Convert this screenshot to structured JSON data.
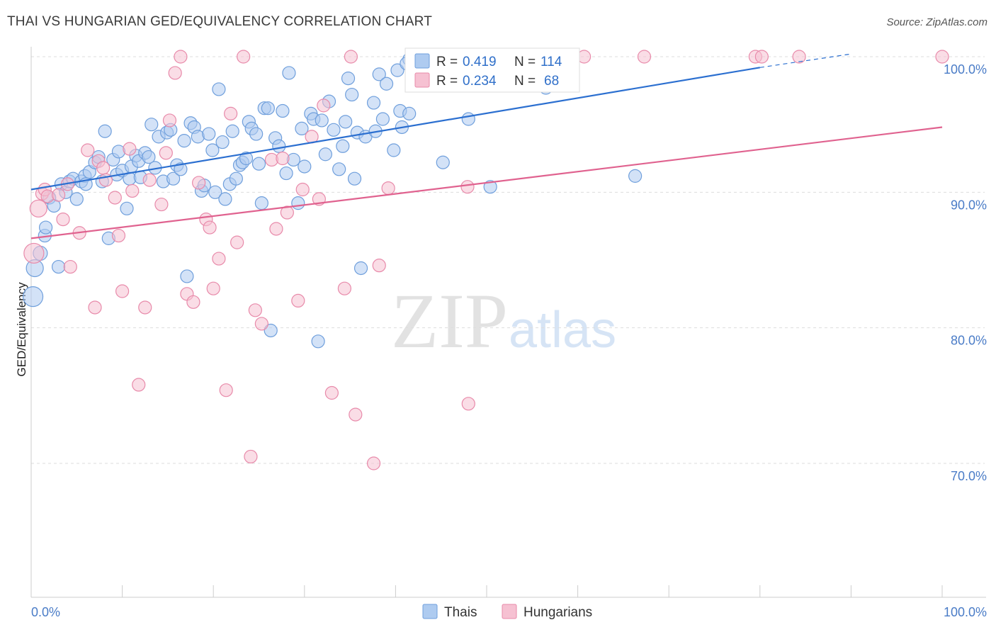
{
  "title": "THAI VS HUNGARIAN GED/EQUIVALENCY CORRELATION CHART",
  "source": "Source: ZipAtlas.com",
  "watermark": {
    "part1": "ZIP",
    "part2": "atlas"
  },
  "colors": {
    "thai_fill": "#aecbf0",
    "thai_stroke": "#6f9fdc",
    "thai_line": "#2b6fd0",
    "hungarian_fill": "#f6c1d2",
    "hungarian_stroke": "#e88aaa",
    "hungarian_line": "#e0628f",
    "grid": "#dddddd",
    "tick_label": "#4a7cc7"
  },
  "legend": {
    "r_label": "R =",
    "n_label": "N =",
    "thai": {
      "r": "0.419",
      "n": "114"
    },
    "hungarian": {
      "r": "0.234",
      "n": "68"
    }
  },
  "bottom_legend": {
    "thai": "Thais",
    "hungarian": "Hungarians"
  },
  "chart_data": {
    "type": "scatter",
    "ylabel": "GED/Equivalency",
    "xlabel": "",
    "xlim": [
      0,
      100
    ],
    "ylim": [
      60,
      100
    ],
    "x_tick_labels": [
      "0.0%",
      "100.0%"
    ],
    "y_ticks": [
      {
        "value": 70,
        "label": "70.0%"
      },
      {
        "value": 80,
        "label": "80.0%"
      },
      {
        "value": 90,
        "label": "90.0%"
      },
      {
        "value": 100,
        "label": "100.0%"
      }
    ],
    "series": [
      {
        "name": "Thais",
        "trend": {
          "x0": 0,
          "y0": 90.2,
          "x1": 80,
          "y1": 99.2,
          "dash_x1": 90,
          "dash_y1": 100.2
        },
        "points": [
          [
            0.2,
            82.3,
            14
          ],
          [
            0.4,
            84.4,
            12
          ],
          [
            1.0,
            85.5,
            10
          ],
          [
            1.5,
            86.8,
            9
          ],
          [
            1.6,
            87.4,
            9
          ],
          [
            2.0,
            89.6,
            9
          ],
          [
            2.5,
            89.0,
            9
          ],
          [
            3.0,
            84.5,
            9
          ],
          [
            3.3,
            90.6,
            9
          ],
          [
            3.8,
            90.0,
            9
          ],
          [
            4.2,
            90.8,
            9
          ],
          [
            4.6,
            91.0,
            9
          ],
          [
            5.0,
            89.5,
            9
          ],
          [
            5.5,
            90.8,
            9
          ],
          [
            5.9,
            91.2,
            9
          ],
          [
            6.0,
            90.6,
            9
          ],
          [
            6.4,
            91.5,
            9
          ],
          [
            7.0,
            92.2,
            9
          ],
          [
            7.4,
            92.6,
            9
          ],
          [
            7.8,
            90.8,
            9
          ],
          [
            8.1,
            94.5,
            9
          ],
          [
            8.5,
            86.6,
            9
          ],
          [
            9.0,
            92.4,
            9
          ],
          [
            9.4,
            91.3,
            9
          ],
          [
            9.6,
            93.0,
            9
          ],
          [
            10.0,
            91.6,
            9
          ],
          [
            10.5,
            88.8,
            9
          ],
          [
            10.8,
            91.0,
            9
          ],
          [
            11.0,
            91.9,
            9
          ],
          [
            11.5,
            92.7,
            9
          ],
          [
            11.8,
            92.3,
            9
          ],
          [
            12.0,
            91.1,
            9
          ],
          [
            12.5,
            92.9,
            9
          ],
          [
            12.9,
            92.6,
            9
          ],
          [
            13.2,
            95.0,
            9
          ],
          [
            13.6,
            91.8,
            9
          ],
          [
            14.0,
            94.1,
            9
          ],
          [
            14.5,
            90.8,
            9
          ],
          [
            14.9,
            94.4,
            9
          ],
          [
            15.3,
            94.6,
            9
          ],
          [
            15.6,
            91.0,
            9
          ],
          [
            16.0,
            92.0,
            9
          ],
          [
            16.4,
            91.7,
            9
          ],
          [
            16.8,
            93.8,
            9
          ],
          [
            17.1,
            83.8,
            9
          ],
          [
            17.5,
            95.1,
            9
          ],
          [
            17.9,
            94.8,
            9
          ],
          [
            18.3,
            94.1,
            9
          ],
          [
            18.7,
            90.1,
            9
          ],
          [
            19.0,
            90.5,
            9
          ],
          [
            19.5,
            94.3,
            9
          ],
          [
            19.9,
            93.1,
            9
          ],
          [
            20.2,
            90.0,
            9
          ],
          [
            20.6,
            97.6,
            9
          ],
          [
            21.0,
            93.7,
            9
          ],
          [
            21.3,
            89.5,
            9
          ],
          [
            21.8,
            90.6,
            9
          ],
          [
            22.1,
            94.5,
            9
          ],
          [
            22.5,
            91.0,
            9
          ],
          [
            22.9,
            92.0,
            9
          ],
          [
            23.2,
            92.2,
            9
          ],
          [
            23.6,
            92.5,
            9
          ],
          [
            23.9,
            95.2,
            9
          ],
          [
            24.2,
            94.7,
            9
          ],
          [
            24.7,
            94.3,
            9
          ],
          [
            25.0,
            92.1,
            9
          ],
          [
            25.3,
            89.2,
            9
          ],
          [
            25.6,
            96.2,
            9
          ],
          [
            26.0,
            96.2,
            9
          ],
          [
            26.3,
            79.8,
            9
          ],
          [
            26.8,
            94.0,
            9
          ],
          [
            27.2,
            93.4,
            9
          ],
          [
            27.6,
            96.0,
            9
          ],
          [
            28.0,
            91.4,
            9
          ],
          [
            28.3,
            98.8,
            9
          ],
          [
            28.8,
            92.4,
            9
          ],
          [
            29.3,
            89.2,
            9
          ],
          [
            29.7,
            94.7,
            9
          ],
          [
            30.0,
            91.9,
            9
          ],
          [
            30.7,
            95.8,
            9
          ],
          [
            31.0,
            95.4,
            9
          ],
          [
            31.5,
            79.0,
            9
          ],
          [
            31.9,
            95.3,
            9
          ],
          [
            32.3,
            92.8,
            9
          ],
          [
            32.7,
            96.7,
            9
          ],
          [
            33.2,
            94.6,
            9
          ],
          [
            33.8,
            91.7,
            9
          ],
          [
            34.2,
            93.4,
            9
          ],
          [
            34.5,
            95.2,
            9
          ],
          [
            34.8,
            98.4,
            9
          ],
          [
            35.2,
            97.2,
            9
          ],
          [
            35.5,
            91.0,
            9
          ],
          [
            35.8,
            94.4,
            9
          ],
          [
            36.2,
            84.4,
            9
          ],
          [
            36.7,
            94.1,
            9
          ],
          [
            37.6,
            96.6,
            9
          ],
          [
            37.8,
            94.5,
            9
          ],
          [
            38.2,
            98.7,
            9
          ],
          [
            38.6,
            95.4,
            9
          ],
          [
            39.0,
            98.0,
            9
          ],
          [
            39.8,
            93.1,
            9
          ],
          [
            40.2,
            99.0,
            9
          ],
          [
            40.5,
            96.0,
            9
          ],
          [
            40.7,
            94.8,
            9
          ],
          [
            41.5,
            99.8,
            9
          ],
          [
            41.9,
            99.8,
            9
          ],
          [
            41.5,
            95.8,
            9
          ],
          [
            42.0,
            99.8,
            9
          ],
          [
            41.2,
            99.5,
            9
          ],
          [
            45.2,
            92.2,
            9
          ],
          [
            48.0,
            95.4,
            9
          ],
          [
            50.4,
            90.4,
            9
          ],
          [
            56.5,
            97.7,
            9
          ],
          [
            66.3,
            91.2,
            9
          ]
        ]
      },
      {
        "name": "Hungarians",
        "trend": {
          "x0": 0,
          "y0": 86.6,
          "x1": 100,
          "y1": 94.8
        },
        "points": [
          [
            0.3,
            85.5,
            14
          ],
          [
            0.8,
            88.8,
            12
          ],
          [
            1.2,
            89.9,
            9
          ],
          [
            1.5,
            90.2,
            9
          ],
          [
            1.8,
            89.7,
            9
          ],
          [
            3.0,
            89.8,
            9
          ],
          [
            3.5,
            88.0,
            9
          ],
          [
            4.0,
            90.6,
            9
          ],
          [
            4.3,
            84.5,
            9
          ],
          [
            5.3,
            87.0,
            9
          ],
          [
            6.2,
            93.1,
            9
          ],
          [
            7.0,
            81.5,
            9
          ],
          [
            7.4,
            92.3,
            9
          ],
          [
            7.9,
            91.8,
            9
          ],
          [
            8.2,
            90.9,
            9
          ],
          [
            9.2,
            89.6,
            9
          ],
          [
            9.6,
            86.8,
            9
          ],
          [
            10.0,
            82.7,
            9
          ],
          [
            10.8,
            93.2,
            9
          ],
          [
            11.1,
            90.1,
            9
          ],
          [
            11.8,
            75.8,
            9
          ],
          [
            12.5,
            81.5,
            9
          ],
          [
            13.0,
            90.9,
            9
          ],
          [
            14.3,
            89.1,
            9
          ],
          [
            14.8,
            92.9,
            9
          ],
          [
            15.2,
            95.3,
            9
          ],
          [
            15.8,
            98.8,
            9
          ],
          [
            16.4,
            100.0,
            9
          ],
          [
            17.1,
            82.5,
            9
          ],
          [
            17.8,
            81.9,
            9
          ],
          [
            18.4,
            90.7,
            9
          ],
          [
            19.2,
            88.0,
            9
          ],
          [
            19.6,
            87.4,
            9
          ],
          [
            20.0,
            82.9,
            9
          ],
          [
            20.6,
            85.1,
            9
          ],
          [
            21.4,
            75.4,
            9
          ],
          [
            21.9,
            95.8,
            9
          ],
          [
            22.6,
            86.3,
            9
          ],
          [
            23.3,
            100.0,
            9
          ],
          [
            24.1,
            70.5,
            9
          ],
          [
            24.6,
            81.3,
            9
          ],
          [
            25.3,
            80.3,
            9
          ],
          [
            26.4,
            92.4,
            9
          ],
          [
            26.9,
            87.3,
            9
          ],
          [
            27.6,
            92.5,
            9
          ],
          [
            28.1,
            88.5,
            9
          ],
          [
            29.3,
            82.0,
            9
          ],
          [
            29.8,
            90.2,
            9
          ],
          [
            30.8,
            94.1,
            9
          ],
          [
            31.6,
            89.5,
            9
          ],
          [
            32.1,
            96.4,
            9
          ],
          [
            33.0,
            75.2,
            9
          ],
          [
            34.4,
            82.9,
            9
          ],
          [
            35.1,
            100.0,
            9
          ],
          [
            35.6,
            73.6,
            9
          ],
          [
            37.6,
            70.0,
            9
          ],
          [
            38.2,
            84.6,
            9
          ],
          [
            39.2,
            90.3,
            9
          ],
          [
            42.8,
            100.0,
            9
          ],
          [
            47.9,
            90.4,
            9
          ],
          [
            48.0,
            74.4,
            9
          ],
          [
            57.2,
            100.0,
            9
          ],
          [
            60.7,
            100.0,
            9
          ],
          [
            67.3,
            100.0,
            9
          ],
          [
            79.5,
            100.0,
            9
          ],
          [
            80.2,
            100.0,
            9
          ],
          [
            84.3,
            100.0,
            9
          ],
          [
            100.0,
            100.0,
            9
          ]
        ]
      }
    ]
  }
}
